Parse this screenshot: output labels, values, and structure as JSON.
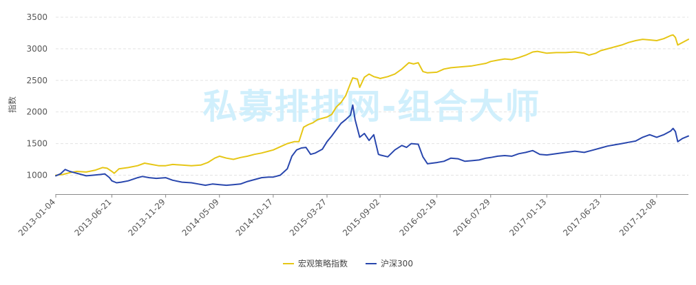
{
  "watermark": "私募排排网-组合大师",
  "chart_data": {
    "type": "line",
    "title": "",
    "xlabel": "",
    "ylabel": "指数",
    "ylim": [
      700,
      3500
    ],
    "yticks": [
      1000,
      1500,
      2000,
      2500,
      3000,
      3500
    ],
    "xlim": [
      "2013-01-04",
      "2018-03-13"
    ],
    "xticks": [
      "2013-01-04",
      "2013-06-21",
      "2013-11-29",
      "2014-05-09",
      "2014-10-17",
      "2015-03-27",
      "2015-09-02",
      "2016-02-19",
      "2016-07-29",
      "2017-01-13",
      "2017-06-23",
      "2017-12-08"
    ],
    "grid": true,
    "legend_position": "bottom",
    "series": [
      {
        "name": "宏观策略指数",
        "color": "#e6c615",
        "points": [
          [
            "2013-01-04",
            1000
          ],
          [
            "2013-01-25",
            1010
          ],
          [
            "2013-02-15",
            1040
          ],
          [
            "2013-03-08",
            1060
          ],
          [
            "2013-04-05",
            1050
          ],
          [
            "2013-05-03",
            1080
          ],
          [
            "2013-05-24",
            1120
          ],
          [
            "2013-06-07",
            1110
          ],
          [
            "2013-06-21",
            1060
          ],
          [
            "2013-06-28",
            1030
          ],
          [
            "2013-07-12",
            1100
          ],
          [
            "2013-08-09",
            1120
          ],
          [
            "2013-09-06",
            1150
          ],
          [
            "2013-09-27",
            1190
          ],
          [
            "2013-10-18",
            1170
          ],
          [
            "2013-11-08",
            1150
          ],
          [
            "2013-11-29",
            1150
          ],
          [
            "2013-12-20",
            1170
          ],
          [
            "2014-01-17",
            1160
          ],
          [
            "2014-02-14",
            1150
          ],
          [
            "2014-03-14",
            1160
          ],
          [
            "2014-04-04",
            1200
          ],
          [
            "2014-04-25",
            1270
          ],
          [
            "2014-05-09",
            1300
          ],
          [
            "2014-05-30",
            1270
          ],
          [
            "2014-06-20",
            1250
          ],
          [
            "2014-07-11",
            1280
          ],
          [
            "2014-08-01",
            1300
          ],
          [
            "2014-08-22",
            1330
          ],
          [
            "2014-09-12",
            1350
          ],
          [
            "2014-10-03",
            1380
          ],
          [
            "2014-10-17",
            1400
          ],
          [
            "2014-11-07",
            1450
          ],
          [
            "2014-11-28",
            1500
          ],
          [
            "2014-12-19",
            1530
          ],
          [
            "2015-01-02",
            1530
          ],
          [
            "2015-01-16",
            1760
          ],
          [
            "2015-01-30",
            1800
          ],
          [
            "2015-02-13",
            1830
          ],
          [
            "2015-02-27",
            1880
          ],
          [
            "2015-03-13",
            1900
          ],
          [
            "2015-03-27",
            1920
          ],
          [
            "2015-04-10",
            1960
          ],
          [
            "2015-04-24",
            2080
          ],
          [
            "2015-05-08",
            2150
          ],
          [
            "2015-05-22",
            2260
          ],
          [
            "2015-06-05",
            2450
          ],
          [
            "2015-06-12",
            2540
          ],
          [
            "2015-06-26",
            2520
          ],
          [
            "2015-07-03",
            2390
          ],
          [
            "2015-07-17",
            2550
          ],
          [
            "2015-07-31",
            2600
          ],
          [
            "2015-08-14",
            2560
          ],
          [
            "2015-08-28",
            2540
          ],
          [
            "2015-09-02",
            2530
          ],
          [
            "2015-09-25",
            2560
          ],
          [
            "2015-10-16",
            2600
          ],
          [
            "2015-11-06",
            2680
          ],
          [
            "2015-11-27",
            2780
          ],
          [
            "2015-12-11",
            2760
          ],
          [
            "2015-12-25",
            2780
          ],
          [
            "2016-01-08",
            2640
          ],
          [
            "2016-01-22",
            2620
          ],
          [
            "2016-02-19",
            2630
          ],
          [
            "2016-03-11",
            2680
          ],
          [
            "2016-04-01",
            2700
          ],
          [
            "2016-04-22",
            2710
          ],
          [
            "2016-05-13",
            2720
          ],
          [
            "2016-06-03",
            2730
          ],
          [
            "2016-06-24",
            2750
          ],
          [
            "2016-07-15",
            2770
          ],
          [
            "2016-07-29",
            2800
          ],
          [
            "2016-08-19",
            2820
          ],
          [
            "2016-09-09",
            2840
          ],
          [
            "2016-09-30",
            2830
          ],
          [
            "2016-10-21",
            2860
          ],
          [
            "2016-11-11",
            2900
          ],
          [
            "2016-12-02",
            2950
          ],
          [
            "2016-12-16",
            2960
          ],
          [
            "2017-01-13",
            2930
          ],
          [
            "2017-02-10",
            2940
          ],
          [
            "2017-03-10",
            2940
          ],
          [
            "2017-04-07",
            2950
          ],
          [
            "2017-05-05",
            2930
          ],
          [
            "2017-05-19",
            2900
          ],
          [
            "2017-06-09",
            2930
          ],
          [
            "2017-06-23",
            2970
          ],
          [
            "2017-07-14",
            3000
          ],
          [
            "2017-08-04",
            3030
          ],
          [
            "2017-08-25",
            3060
          ],
          [
            "2017-09-15",
            3100
          ],
          [
            "2017-10-06",
            3130
          ],
          [
            "2017-10-27",
            3150
          ],
          [
            "2017-11-17",
            3140
          ],
          [
            "2017-12-08",
            3130
          ],
          [
            "2017-12-29",
            3160
          ],
          [
            "2018-01-19",
            3210
          ],
          [
            "2018-01-26",
            3220
          ],
          [
            "2018-02-02",
            3180
          ],
          [
            "2018-02-09",
            3060
          ],
          [
            "2018-02-23",
            3100
          ],
          [
            "2018-03-13",
            3150
          ]
        ]
      },
      {
        "name": "沪深300",
        "color": "#2846ad",
        "points": [
          [
            "2013-01-04",
            990
          ],
          [
            "2013-01-18",
            1020
          ],
          [
            "2013-02-01",
            1090
          ],
          [
            "2013-02-15",
            1060
          ],
          [
            "2013-03-01",
            1040
          ],
          [
            "2013-03-15",
            1020
          ],
          [
            "2013-04-05",
            990
          ],
          [
            "2013-04-26",
            1000
          ],
          [
            "2013-05-17",
            1010
          ],
          [
            "2013-05-31",
            1020
          ],
          [
            "2013-06-14",
            960
          ],
          [
            "2013-06-21",
            910
          ],
          [
            "2013-07-05",
            880
          ],
          [
            "2013-07-19",
            890
          ],
          [
            "2013-08-09",
            910
          ],
          [
            "2013-09-06",
            960
          ],
          [
            "2013-09-20",
            980
          ],
          [
            "2013-10-11",
            960
          ],
          [
            "2013-11-01",
            950
          ],
          [
            "2013-11-29",
            960
          ],
          [
            "2013-12-20",
            920
          ],
          [
            "2014-01-17",
            890
          ],
          [
            "2014-02-14",
            880
          ],
          [
            "2014-03-07",
            860
          ],
          [
            "2014-03-28",
            840
          ],
          [
            "2014-04-18",
            860
          ],
          [
            "2014-05-09",
            850
          ],
          [
            "2014-05-30",
            840
          ],
          [
            "2014-06-20",
            850
          ],
          [
            "2014-07-11",
            860
          ],
          [
            "2014-08-01",
            900
          ],
          [
            "2014-08-22",
            930
          ],
          [
            "2014-09-12",
            960
          ],
          [
            "2014-10-03",
            970
          ],
          [
            "2014-10-17",
            970
          ],
          [
            "2014-11-07",
            1000
          ],
          [
            "2014-11-28",
            1100
          ],
          [
            "2014-12-12",
            1300
          ],
          [
            "2014-12-26",
            1400
          ],
          [
            "2015-01-09",
            1430
          ],
          [
            "2015-01-23",
            1440
          ],
          [
            "2015-02-06",
            1330
          ],
          [
            "2015-02-20",
            1350
          ],
          [
            "2015-03-13",
            1410
          ],
          [
            "2015-03-27",
            1530
          ],
          [
            "2015-04-10",
            1620
          ],
          [
            "2015-04-24",
            1720
          ],
          [
            "2015-05-08",
            1820
          ],
          [
            "2015-05-22",
            1880
          ],
          [
            "2015-06-05",
            1950
          ],
          [
            "2015-06-12",
            2110
          ],
          [
            "2015-06-19",
            1880
          ],
          [
            "2015-07-03",
            1600
          ],
          [
            "2015-07-17",
            1660
          ],
          [
            "2015-07-31",
            1550
          ],
          [
            "2015-08-14",
            1640
          ],
          [
            "2015-08-28",
            1330
          ],
          [
            "2015-09-02",
            1320
          ],
          [
            "2015-09-25",
            1290
          ],
          [
            "2015-10-16",
            1400
          ],
          [
            "2015-11-06",
            1470
          ],
          [
            "2015-11-20",
            1440
          ],
          [
            "2015-12-04",
            1500
          ],
          [
            "2015-12-25",
            1490
          ],
          [
            "2016-01-08",
            1290
          ],
          [
            "2016-01-22",
            1180
          ],
          [
            "2016-02-19",
            1200
          ],
          [
            "2016-03-11",
            1220
          ],
          [
            "2016-04-01",
            1270
          ],
          [
            "2016-04-22",
            1260
          ],
          [
            "2016-05-13",
            1220
          ],
          [
            "2016-06-03",
            1230
          ],
          [
            "2016-06-24",
            1240
          ],
          [
            "2016-07-15",
            1270
          ],
          [
            "2016-07-29",
            1280
          ],
          [
            "2016-08-19",
            1300
          ],
          [
            "2016-09-09",
            1310
          ],
          [
            "2016-09-30",
            1300
          ],
          [
            "2016-10-21",
            1340
          ],
          [
            "2016-11-11",
            1360
          ],
          [
            "2016-12-02",
            1390
          ],
          [
            "2016-12-23",
            1330
          ],
          [
            "2017-01-13",
            1320
          ],
          [
            "2017-02-10",
            1340
          ],
          [
            "2017-03-10",
            1360
          ],
          [
            "2017-04-07",
            1380
          ],
          [
            "2017-05-05",
            1360
          ],
          [
            "2017-05-26",
            1390
          ],
          [
            "2017-06-23",
            1430
          ],
          [
            "2017-07-14",
            1460
          ],
          [
            "2017-08-04",
            1480
          ],
          [
            "2017-08-25",
            1500
          ],
          [
            "2017-09-15",
            1520
          ],
          [
            "2017-10-06",
            1540
          ],
          [
            "2017-10-27",
            1600
          ],
          [
            "2017-11-17",
            1640
          ],
          [
            "2017-12-08",
            1600
          ],
          [
            "2017-12-29",
            1640
          ],
          [
            "2018-01-19",
            1700
          ],
          [
            "2018-01-26",
            1740
          ],
          [
            "2018-02-02",
            1690
          ],
          [
            "2018-02-09",
            1530
          ],
          [
            "2018-02-23",
            1580
          ],
          [
            "2018-03-13",
            1620
          ]
        ]
      }
    ]
  }
}
